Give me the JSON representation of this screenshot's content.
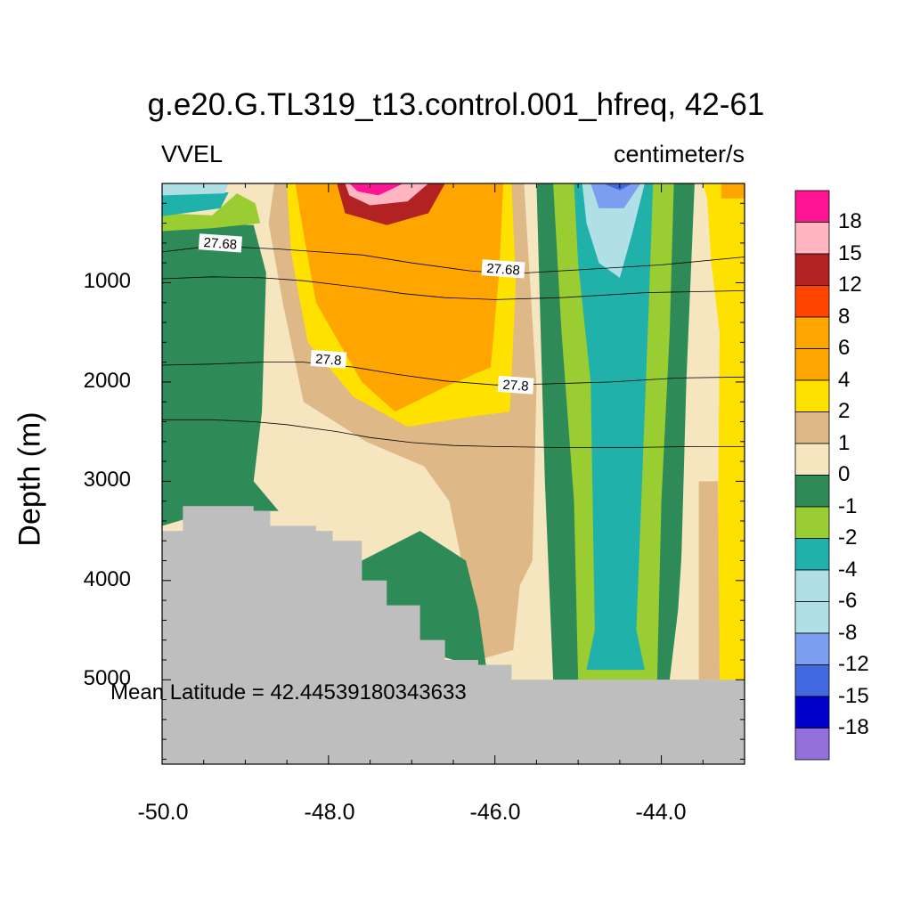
{
  "chart_data": {
    "type": "heatmap",
    "subtype": "filled ocean depth-longitude section with density contours",
    "title": "g.e20.G.TL319_t13.control.001_hfreq, 42-61",
    "left_string": "VVEL",
    "right_string": "centimeter/s",
    "xlabel": "",
    "ylabel": "Depth (m)",
    "xlim": [
      -50.0,
      -43.0
    ],
    "ylim": [
      0,
      5850
    ],
    "y_reversed": true,
    "x_ticks": [
      "-50.0",
      "-48.0",
      "-46.0",
      "-44.0"
    ],
    "x_tick_values": [
      -50,
      -48,
      -46,
      -44
    ],
    "y_ticks": [
      "1000",
      "2000",
      "3000",
      "4000",
      "5000"
    ],
    "y_tick_values": [
      1000,
      2000,
      3000,
      4000,
      5000
    ],
    "annotation": "Mean Latitude = 42.44539180343633",
    "land_color": "#bebebe",
    "colorbar": {
      "labels": [
        "18",
        "15",
        "12",
        "8",
        "6",
        "4",
        "2",
        "1",
        "0",
        "-1",
        "-2",
        "-4",
        "-6",
        "-8",
        "-12",
        "-15",
        "-18"
      ],
      "colors": [
        "#ff1493",
        "#ffb6c1",
        "#b22222",
        "#ff4500",
        "#ffa500",
        "#ffa500",
        "#ffe100",
        "#deb887",
        "#f5e6c0",
        "#2e8b57",
        "#9acd32",
        "#20b2aa",
        "#b0e0e6",
        "#b0e0e6",
        "#7b9ef0",
        "#4169e1",
        "#0000cd",
        "#9370db"
      ]
    },
    "regions": [
      {
        "name": "pos-1",
        "level": 1,
        "poly": [
          [
            -48.65,
            0
          ],
          [
            -45.65,
            0
          ],
          [
            -45.5,
            2050
          ],
          [
            -45.55,
            3800
          ],
          [
            -45.7,
            4050
          ],
          [
            -45.78,
            4700
          ],
          [
            -46.2,
            4800
          ],
          [
            -46.3,
            4200
          ],
          [
            -46.55,
            3200
          ],
          [
            -46.85,
            2850
          ],
          [
            -47.55,
            2600
          ],
          [
            -48.3,
            2200
          ],
          [
            -48.55,
            1200
          ],
          [
            -48.72,
            400
          ]
        ]
      },
      {
        "name": "pos-2",
        "level": 2,
        "poly": [
          [
            -48.5,
            0
          ],
          [
            -45.8,
            0
          ],
          [
            -45.75,
            1000
          ],
          [
            -45.82,
            2300
          ],
          [
            -46.3,
            2350
          ],
          [
            -47.05,
            2450
          ],
          [
            -47.7,
            2150
          ],
          [
            -48.25,
            1600
          ],
          [
            -48.45,
            700
          ]
        ]
      },
      {
        "name": "pos-4",
        "level": 4,
        "poly": [
          [
            -48.4,
            0
          ],
          [
            -45.9,
            0
          ],
          [
            -45.95,
            900
          ],
          [
            -46.05,
            1850
          ],
          [
            -46.6,
            2050
          ],
          [
            -47.2,
            2300
          ],
          [
            -47.6,
            2000
          ],
          [
            -48.15,
            1200
          ],
          [
            -48.3,
            500
          ]
        ]
      },
      {
        "name": "pos-6",
        "level": 6,
        "poly": [
          [
            -48.2,
            0
          ],
          [
            -46.2,
            0
          ],
          [
            -46.4,
            500
          ],
          [
            -46.9,
            950
          ],
          [
            -47.5,
            1000
          ],
          [
            -48.0,
            800
          ],
          [
            -48.15,
            400
          ]
        ]
      },
      {
        "name": "pos-12",
        "level": 12,
        "poly": [
          [
            -47.9,
            0
          ],
          [
            -46.6,
            0
          ],
          [
            -46.8,
            300
          ],
          [
            -47.3,
            420
          ],
          [
            -47.8,
            300
          ]
        ]
      },
      {
        "name": "pos-15",
        "level": 15,
        "poly": [
          [
            -47.8,
            0
          ],
          [
            -46.8,
            0
          ],
          [
            -47.05,
            180
          ],
          [
            -47.5,
            220
          ],
          [
            -47.75,
            120
          ]
        ]
      },
      {
        "name": "pos-18",
        "level": 18,
        "poly": [
          [
            -47.75,
            0
          ],
          [
            -47.1,
            0
          ],
          [
            -47.4,
            120
          ],
          [
            -47.65,
            80
          ]
        ]
      },
      {
        "name": "neg-1-west",
        "level": -1,
        "poly": [
          [
            -50,
            450
          ],
          [
            -49.5,
            400
          ],
          [
            -48.9,
            420
          ],
          [
            -48.75,
            900
          ],
          [
            -48.8,
            2300
          ],
          [
            -48.9,
            3000
          ],
          [
            -48.6,
            3300
          ],
          [
            -49.4,
            3300
          ],
          [
            -50,
            3450
          ]
        ]
      },
      {
        "name": "neg-2-west",
        "level": -2,
        "poly": [
          [
            -50,
            300
          ],
          [
            -49.4,
            320
          ],
          [
            -49.1,
            100
          ],
          [
            -48.88,
            200
          ],
          [
            -48.82,
            400
          ],
          [
            -49.4,
            450
          ],
          [
            -50,
            480
          ]
        ]
      },
      {
        "name": "neg-4-west",
        "level": -4,
        "poly": [
          [
            -50,
            100
          ],
          [
            -49.2,
            90
          ],
          [
            -49.3,
            250
          ],
          [
            -50,
            330
          ]
        ]
      },
      {
        "name": "neg-6-west",
        "level": -6,
        "poly": [
          [
            -50,
            0
          ],
          [
            -49.2,
            0
          ],
          [
            -49.25,
            100
          ],
          [
            -50,
            120
          ]
        ]
      },
      {
        "name": "neg-1-deep",
        "level": -1,
        "poly": [
          [
            -47.6,
            3800
          ],
          [
            -46.9,
            3500
          ],
          [
            -46.35,
            3800
          ],
          [
            -46.2,
            4300
          ],
          [
            -46.1,
            4900
          ],
          [
            -46.9,
            4700
          ],
          [
            -47.6,
            4100
          ]
        ]
      },
      {
        "name": "neg-1-east",
        "level": -1,
        "poly": [
          [
            -45.5,
            0
          ],
          [
            -43.6,
            0
          ],
          [
            -43.7,
            2000
          ],
          [
            -43.8,
            5000
          ],
          [
            -45.3,
            5000
          ],
          [
            -45.4,
            3000
          ],
          [
            -45.45,
            1500
          ]
        ]
      },
      {
        "name": "neg-2-east",
        "level": -2,
        "poly": [
          [
            -45.3,
            0
          ],
          [
            -43.85,
            0
          ],
          [
            -43.9,
            1500
          ],
          [
            -44.0,
            3200
          ],
          [
            -44.05,
            5000
          ],
          [
            -45.0,
            5000
          ],
          [
            -45.05,
            3200
          ],
          [
            -45.2,
            1500
          ]
        ]
      },
      {
        "name": "neg-4-east",
        "level": -4,
        "poly": [
          [
            -45.05,
            0
          ],
          [
            -44.1,
            0
          ],
          [
            -44.15,
            1200
          ],
          [
            -44.3,
            4500
          ],
          [
            -44.2,
            4900
          ],
          [
            -44.9,
            4900
          ],
          [
            -44.8,
            4500
          ],
          [
            -44.85,
            2000
          ],
          [
            -45.0,
            800
          ]
        ]
      },
      {
        "name": "neg-6-east",
        "level": -6,
        "poly": [
          [
            -44.95,
            0
          ],
          [
            -44.2,
            0
          ],
          [
            -44.35,
            500
          ],
          [
            -44.5,
            950
          ],
          [
            -44.75,
            800
          ],
          [
            -44.9,
            400
          ]
        ]
      },
      {
        "name": "neg-12-east",
        "level": -12,
        "poly": [
          [
            -44.85,
            0
          ],
          [
            -44.25,
            0
          ],
          [
            -44.45,
            250
          ],
          [
            -44.75,
            250
          ]
        ]
      },
      {
        "name": "neg-15-east",
        "level": -15,
        "poly": [
          [
            -44.7,
            0
          ],
          [
            -44.35,
            0
          ],
          [
            -44.5,
            70
          ]
        ]
      },
      {
        "name": "pos-2-east",
        "level": 2,
        "poly": [
          [
            -43.5,
            0
          ],
          [
            -43.0,
            0
          ],
          [
            -43.0,
            5000
          ],
          [
            -43.3,
            5000
          ],
          [
            -43.32,
            3500
          ],
          [
            -43.3,
            1500
          ],
          [
            -43.4,
            800
          ],
          [
            -43.45,
            150
          ]
        ]
      },
      {
        "name": "pos-1-east",
        "level": 1,
        "poly": [
          [
            -43.55,
            3000
          ],
          [
            -43.32,
            3000
          ],
          [
            -43.3,
            5000
          ],
          [
            -43.55,
            5000
          ]
        ]
      },
      {
        "name": "pos-0-east",
        "level": 0,
        "poly": [
          [
            -43.62,
            2200
          ],
          [
            -43.55,
            2200
          ],
          [
            -43.55,
            5000
          ],
          [
            -43.9,
            5000
          ],
          [
            -43.8,
            4300
          ],
          [
            -43.7,
            3000
          ]
        ]
      },
      {
        "name": "pos-4-east",
        "level": 4,
        "poly": [
          [
            -43.28,
            0
          ],
          [
            -43.0,
            0
          ],
          [
            -43.0,
            150
          ],
          [
            -43.28,
            150
          ]
        ]
      }
    ],
    "bathymetry_depth": [
      [
        -50.0,
        3500
      ],
      [
        -49.75,
        3250
      ],
      [
        -49.2,
        3250
      ],
      [
        -48.9,
        3300
      ],
      [
        -48.7,
        3450
      ],
      [
        -48.15,
        3500
      ],
      [
        -47.95,
        3600
      ],
      [
        -47.6,
        4000
      ],
      [
        -47.3,
        4250
      ],
      [
        -46.9,
        4600
      ],
      [
        -46.6,
        4800
      ],
      [
        -46.2,
        4850
      ],
      [
        -45.8,
        5000
      ],
      [
        -43.0,
        5000
      ]
    ],
    "contours": [
      {
        "label": "27.68",
        "labeled": true,
        "points": [
          [
            -50,
            690
          ],
          [
            -49.4,
            630
          ],
          [
            -48.6,
            660
          ],
          [
            -47.6,
            720
          ],
          [
            -47.0,
            800
          ],
          [
            -46.3,
            880
          ],
          [
            -45.8,
            910
          ],
          [
            -45.0,
            870
          ],
          [
            -44.0,
            820
          ],
          [
            -43.0,
            740
          ]
        ]
      },
      {
        "label": "27.68",
        "labeled": false,
        "points": [
          [
            -50,
            960
          ],
          [
            -49.4,
            940
          ],
          [
            -48.8,
            950
          ],
          [
            -48.3,
            980
          ],
          [
            -47.6,
            1050
          ],
          [
            -47.1,
            1110
          ],
          [
            -46.6,
            1150
          ],
          [
            -46.0,
            1170
          ],
          [
            -45.2,
            1150
          ],
          [
            -44.2,
            1100
          ],
          [
            -43.0,
            1080
          ]
        ]
      },
      {
        "label": "27.8",
        "labeled": true,
        "points": [
          [
            -50,
            1830
          ],
          [
            -49.4,
            1820
          ],
          [
            -48.8,
            1800
          ],
          [
            -48.3,
            1800
          ],
          [
            -47.7,
            1850
          ],
          [
            -47.2,
            1920
          ],
          [
            -46.6,
            1990
          ],
          [
            -46.0,
            2030
          ],
          [
            -45.4,
            2020
          ],
          [
            -44.6,
            2000
          ],
          [
            -43.8,
            1960
          ],
          [
            -43.0,
            1950
          ]
        ]
      },
      {
        "label": "27.8",
        "labeled": false,
        "points": [
          [
            -50,
            2380
          ],
          [
            -49.4,
            2380
          ],
          [
            -48.9,
            2400
          ],
          [
            -48.5,
            2430
          ],
          [
            -47.9,
            2500
          ],
          [
            -47.5,
            2560
          ],
          [
            -47.0,
            2610
          ],
          [
            -46.5,
            2640
          ],
          [
            -46.0,
            2650
          ],
          [
            -45.2,
            2660
          ],
          [
            -44.4,
            2660
          ],
          [
            -43.6,
            2650
          ],
          [
            -43.0,
            2650
          ]
        ]
      }
    ],
    "contour_labels": [
      {
        "text": "27.68",
        "x": -49.3,
        "y": 600
      },
      {
        "text": "27.68",
        "x": -45.9,
        "y": 860
      },
      {
        "text": "27.8",
        "x": -48.0,
        "y": 1770
      },
      {
        "text": "27.8",
        "x": -45.75,
        "y": 2030
      }
    ]
  }
}
